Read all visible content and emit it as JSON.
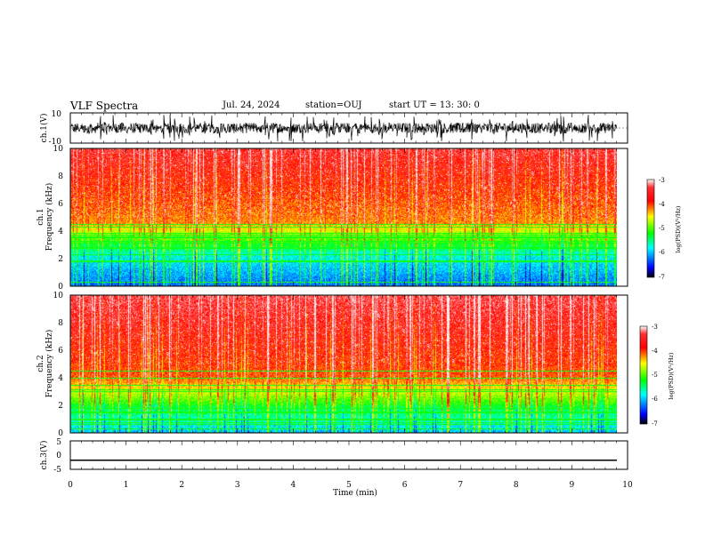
{
  "header": {
    "title": "VLF Spectra",
    "date": "Jul. 24, 2024",
    "station": "station=OUJ",
    "start": "start UT =  13: 30: 0"
  },
  "chart_data": [
    {
      "type": "line",
      "panel": "ch1-waveform",
      "ylabel": "ch.1(V)",
      "ylim": [
        -10,
        10
      ],
      "yticks": [
        "10",
        "-10"
      ],
      "xlim": [
        0,
        10
      ],
      "trace_color": "#000000"
    },
    {
      "type": "heatmap",
      "panel": "ch1-spectrogram",
      "ylabel_line1": "ch.1",
      "ylabel_line2": "Frequency (kHz)",
      "ylim": [
        0,
        10
      ],
      "yticks": [
        "0",
        "2",
        "4",
        "6",
        "8",
        "10"
      ],
      "xlim": [
        0,
        10
      ],
      "colorbar": {
        "label": "log(PSD)(V²/Hz)",
        "range": [
          -7,
          -3
        ],
        "ticks": [
          "-3",
          "-4",
          "-5",
          "-6",
          "-7"
        ]
      }
    },
    {
      "type": "heatmap",
      "panel": "ch2-spectrogram",
      "ylabel_line1": "ch.2",
      "ylabel_line2": "Frequency (kHz)",
      "ylim": [
        0,
        10
      ],
      "yticks": [
        "0",
        "2",
        "4",
        "6",
        "8",
        "10"
      ],
      "xlim": [
        0,
        10
      ],
      "colorbar": {
        "label": "log(PSD)(V²/Hz)",
        "range": [
          -7,
          -3
        ],
        "ticks": [
          "-3",
          "-4",
          "-5",
          "-6",
          "-7"
        ]
      }
    },
    {
      "type": "line",
      "panel": "ch3-waveform",
      "ylabel": "ch.3(V)",
      "ylim": [
        -5,
        5
      ],
      "yticks": [
        "5",
        "0",
        "-5"
      ],
      "xlim": [
        0,
        10
      ],
      "xlabel": "Time (min)",
      "xticks": [
        "0",
        "1",
        "2",
        "3",
        "4",
        "5",
        "6",
        "7",
        "8",
        "9",
        "10"
      ],
      "constant_value": -1.8,
      "trace_color": "#000000"
    }
  ],
  "colors": {
    "scale": [
      "#000000",
      "#0000ff",
      "#00ffff",
      "#00ff00",
      "#ffff00",
      "#ff0000",
      "#ffffff"
    ]
  }
}
